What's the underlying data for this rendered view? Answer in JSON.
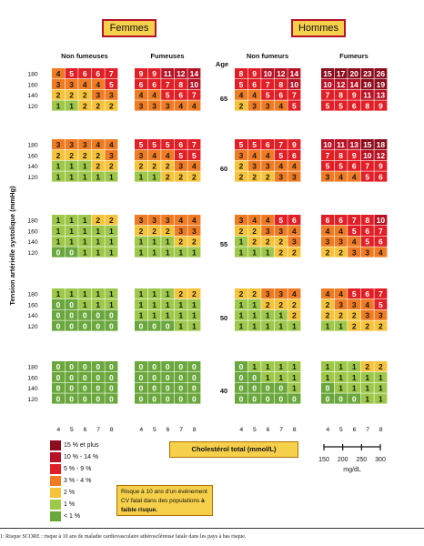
{
  "chart_data": {
    "type": "heatmap",
    "sex_labels": [
      "Femmes",
      "Hommes"
    ],
    "group_labels": [
      "Non fumeuses",
      "Fumeuses",
      "Non fumeurs",
      "Fumeurs"
    ],
    "age_label": "Age",
    "ages": [
      "65",
      "60",
      "55",
      "50",
      "40"
    ],
    "bp_ticks": [
      "180",
      "160",
      "140",
      "120"
    ],
    "chol_ticks": [
      "4",
      "5",
      "6",
      "7",
      "8"
    ],
    "ylabel": "Tension artérielle systolique (mmHg)",
    "xlabel": "Cholestérol total (mmol/L)",
    "mgdl_ticks": [
      "150",
      "200",
      "250",
      "300"
    ],
    "mgdl_label": "mg/dL",
    "colors": {
      "c15": "#8b0d1c",
      "c10": "#b71225",
      "c5": "#e11f26",
      "c3": "#f07b22",
      "c2": "#f7c33a",
      "c1": "#9ec84a",
      "c0": "#6aa73c"
    },
    "panels": {
      "65": [
        [
          [
            4,
            5,
            6,
            6,
            7
          ],
          [
            3,
            3,
            4,
            4,
            5
          ],
          [
            2,
            2,
            2,
            3,
            3
          ],
          [
            1,
            1,
            2,
            2,
            2
          ]
        ],
        [
          [
            9,
            9,
            11,
            12,
            14
          ],
          [
            6,
            6,
            7,
            8,
            10
          ],
          [
            4,
            4,
            5,
            6,
            7
          ],
          [
            3,
            3,
            3,
            4,
            4
          ]
        ],
        [
          [
            8,
            9,
            10,
            12,
            14
          ],
          [
            5,
            6,
            7,
            8,
            10
          ],
          [
            4,
            4,
            5,
            6,
            7
          ],
          [
            2,
            3,
            3,
            4,
            5
          ]
        ],
        [
          [
            15,
            17,
            20,
            23,
            26
          ],
          [
            10,
            12,
            14,
            16,
            19
          ],
          [
            7,
            8,
            9,
            11,
            13
          ],
          [
            5,
            5,
            6,
            8,
            9
          ]
        ]
      ],
      "60": [
        [
          [
            3,
            3,
            3,
            4,
            4
          ],
          [
            2,
            2,
            2,
            2,
            3
          ],
          [
            1,
            1,
            1,
            2,
            2
          ],
          [
            1,
            1,
            1,
            1,
            1
          ]
        ],
        [
          [
            5,
            5,
            5,
            6,
            7
          ],
          [
            3,
            4,
            4,
            5,
            5
          ],
          [
            2,
            2,
            2,
            3,
            4
          ],
          [
            1,
            1,
            2,
            2,
            2
          ]
        ],
        [
          [
            5,
            5,
            6,
            7,
            9
          ],
          [
            3,
            4,
            4,
            5,
            6
          ],
          [
            2,
            3,
            3,
            4,
            4
          ],
          [
            2,
            2,
            2,
            3,
            3
          ]
        ],
        [
          [
            10,
            11,
            13,
            15,
            18
          ],
          [
            7,
            8,
            9,
            10,
            12
          ],
          [
            5,
            5,
            6,
            7,
            9
          ],
          [
            3,
            4,
            4,
            5,
            6
          ]
        ]
      ],
      "55": [
        [
          [
            1,
            1,
            1,
            2,
            2
          ],
          [
            1,
            1,
            1,
            1,
            1
          ],
          [
            1,
            1,
            1,
            1,
            1
          ],
          [
            0,
            0,
            1,
            1,
            1
          ]
        ],
        [
          [
            3,
            3,
            3,
            4,
            4
          ],
          [
            2,
            2,
            2,
            3,
            3
          ],
          [
            1,
            1,
            1,
            2,
            2
          ],
          [
            1,
            1,
            1,
            1,
            1
          ]
        ],
        [
          [
            3,
            4,
            4,
            5,
            6
          ],
          [
            2,
            2,
            3,
            3,
            4
          ],
          [
            1,
            2,
            2,
            2,
            3
          ],
          [
            1,
            1,
            1,
            2,
            2
          ]
        ],
        [
          [
            6,
            6,
            7,
            8,
            10
          ],
          [
            4,
            4,
            5,
            6,
            7
          ],
          [
            3,
            3,
            4,
            5,
            6
          ],
          [
            2,
            2,
            3,
            3,
            4
          ]
        ]
      ],
      "50": [
        [
          [
            1,
            1,
            1,
            1,
            1
          ],
          [
            0,
            0,
            1,
            1,
            1
          ],
          [
            0,
            0,
            0,
            0,
            0
          ],
          [
            0,
            0,
            0,
            0,
            0
          ]
        ],
        [
          [
            1,
            1,
            1,
            2,
            2
          ],
          [
            1,
            1,
            1,
            1,
            1
          ],
          [
            1,
            1,
            1,
            1,
            1
          ],
          [
            0,
            0,
            0,
            1,
            1
          ]
        ],
        [
          [
            2,
            2,
            3,
            3,
            4
          ],
          [
            1,
            1,
            2,
            2,
            2
          ],
          [
            1,
            1,
            1,
            1,
            2
          ],
          [
            1,
            1,
            1,
            1,
            1
          ]
        ],
        [
          [
            4,
            4,
            5,
            6,
            7
          ],
          [
            2,
            3,
            3,
            4,
            5
          ],
          [
            2,
            2,
            2,
            3,
            3
          ],
          [
            1,
            1,
            2,
            2,
            2
          ]
        ]
      ],
      "40": [
        [
          [
            0,
            0,
            0,
            0,
            0
          ],
          [
            0,
            0,
            0,
            0,
            0
          ],
          [
            0,
            0,
            0,
            0,
            0
          ],
          [
            0,
            0,
            0,
            0,
            0
          ]
        ],
        [
          [
            0,
            0,
            0,
            0,
            0
          ],
          [
            0,
            0,
            0,
            0,
            0
          ],
          [
            0,
            0,
            0,
            0,
            0
          ],
          [
            0,
            0,
            0,
            0,
            0
          ]
        ],
        [
          [
            0,
            1,
            1,
            1,
            1
          ],
          [
            0,
            0,
            1,
            1,
            1
          ],
          [
            0,
            0,
            0,
            0,
            1
          ],
          [
            0,
            0,
            0,
            0,
            0
          ]
        ],
        [
          [
            1,
            1,
            1,
            2,
            2
          ],
          [
            1,
            1,
            1,
            1,
            1
          ],
          [
            0,
            1,
            1,
            1,
            1
          ],
          [
            0,
            0,
            0,
            1,
            1
          ]
        ]
      ]
    }
  },
  "legend": [
    {
      "label": "15 % et plus",
      "color": "#8b0d1c"
    },
    {
      "label": "10 % - 14 %",
      "color": "#b71225"
    },
    {
      "label": "5 % - 9 %",
      "color": "#e11f26"
    },
    {
      "label": "3 % - 4 %",
      "color": "#f07b22"
    },
    {
      "label": "2 %",
      "color": "#f7c33a"
    },
    {
      "label": "1 %",
      "color": "#9ec84a"
    },
    {
      "label": "< 1 %",
      "color": "#6aa73c"
    }
  ],
  "note": {
    "text": "Risque à 10 ans d'un événement CV fatal dans des populations ",
    "bold": "à faible risque."
  },
  "footer": "1: Risque SCORE : risque à 10 ans de maladie cardiovasculaire athéroscléreuse fatale dans les pays à bas risque."
}
